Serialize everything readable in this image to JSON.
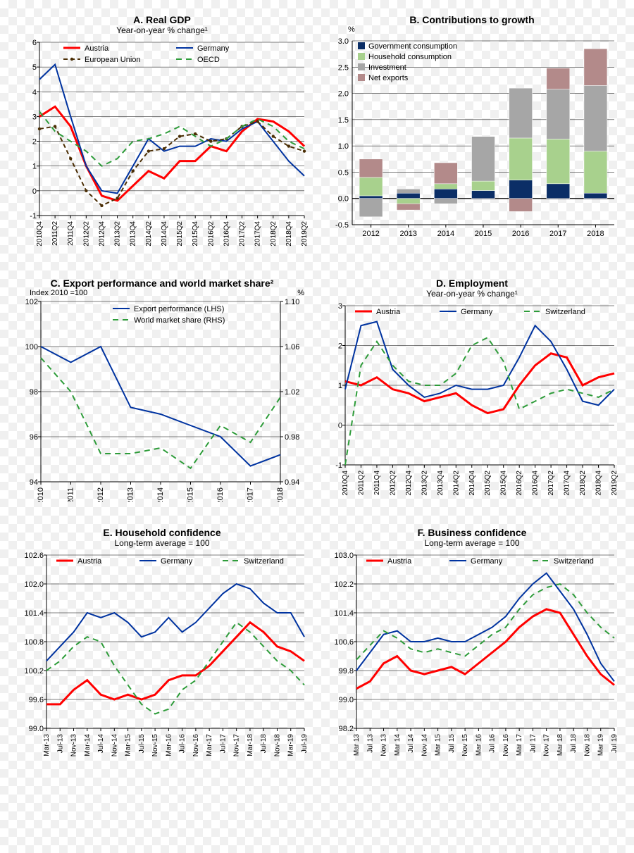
{
  "colors": {
    "austria": "#ff0000",
    "germany": "#0033a0",
    "eu": "#4b2e05",
    "oecd": "#2e9c3a",
    "switzerland": "#2e9c3a",
    "gov": "#0b2e66",
    "household": "#a8d18d",
    "investment": "#a6a6a6",
    "netexp": "#b38a8a",
    "grid": "#000000",
    "bg": "transparent"
  },
  "fonts": {
    "title_size": 14,
    "title_weight": "bold",
    "subtitle_size": 12,
    "tick_size": 11
  },
  "panelA": {
    "title": "A. Real GDP",
    "subtitle": "Year-on-year % change¹",
    "ylim": [
      -1,
      6
    ],
    "ytick_step": 1,
    "x_labels": [
      "2010Q4",
      "2011Q2",
      "2011Q4",
      "2012Q2",
      "2012Q4",
      "2013Q2",
      "2013Q4",
      "2014Q2",
      "2014Q4",
      "2015Q2",
      "2015Q4",
      "2016Q2",
      "2016Q4",
      "2017Q2",
      "2017Q4",
      "2018Q2",
      "2018Q4",
      "2019Q2"
    ],
    "series": [
      {
        "name": "Austria",
        "color": "#ff0000",
        "width": 3,
        "dash": null,
        "y": [
          3.0,
          3.4,
          2.6,
          1.0,
          -0.2,
          -0.4,
          0.2,
          0.8,
          0.5,
          1.2,
          1.2,
          1.8,
          1.6,
          2.4,
          2.9,
          2.8,
          2.4,
          1.8
        ]
      },
      {
        "name": "Germany",
        "color": "#0033a0",
        "width": 2,
        "dash": null,
        "y": [
          4.5,
          5.1,
          3.0,
          1.0,
          0.0,
          -0.1,
          1.0,
          2.1,
          1.6,
          1.8,
          1.8,
          2.1,
          2.0,
          2.5,
          2.8,
          2.0,
          1.2,
          0.6
        ]
      },
      {
        "name": "European Union",
        "color": "#4b2e05",
        "width": 2,
        "dash": "6,4",
        "markers": true,
        "y": [
          2.5,
          2.6,
          1.3,
          0.0,
          -0.6,
          -0.3,
          0.8,
          1.6,
          1.7,
          2.2,
          2.3,
          2.0,
          2.1,
          2.6,
          2.8,
          2.2,
          1.8,
          1.6
        ]
      },
      {
        "name": "OECD",
        "color": "#2e9c3a",
        "width": 2,
        "dash": "8,6",
        "y": [
          3.2,
          2.4,
          2.0,
          1.6,
          1.0,
          1.3,
          2.0,
          2.1,
          2.3,
          2.6,
          2.2,
          1.8,
          2.1,
          2.6,
          2.9,
          2.6,
          2.0,
          1.7
        ]
      }
    ],
    "legend": [
      "Austria",
      "Germany",
      "European Union",
      "OECD"
    ]
  },
  "panelB": {
    "title": "B. Contributions to growth",
    "unit_label": "%",
    "ylim": [
      -0.5,
      3.0
    ],
    "ytick_step": 0.5,
    "categories": [
      "2012",
      "2013",
      "2014",
      "2015",
      "2016",
      "2017",
      "2018"
    ],
    "legend": [
      "Government consumption",
      "Household consumption",
      "Investment",
      "Net exports"
    ],
    "stacks": [
      {
        "cat": "2012",
        "pos": [
          {
            "c": "#0b2e66",
            "v": 0.05
          },
          {
            "c": "#a8d18d",
            "v": 0.35
          },
          {
            "c": "#b38a8a",
            "v": 0.35
          }
        ],
        "neg": [
          {
            "c": "#a6a6a6",
            "v": 0.35
          }
        ]
      },
      {
        "cat": "2013",
        "pos": [
          {
            "c": "#0b2e66",
            "v": 0.1
          },
          {
            "c": "#a6a6a6",
            "v": 0.08
          }
        ],
        "neg": [
          {
            "c": "#a8d18d",
            "v": 0.1
          },
          {
            "c": "#b38a8a",
            "v": 0.12
          }
        ]
      },
      {
        "cat": "2014",
        "pos": [
          {
            "c": "#0b2e66",
            "v": 0.18
          },
          {
            "c": "#a8d18d",
            "v": 0.1
          },
          {
            "c": "#b38a8a",
            "v": 0.4
          }
        ],
        "neg": [
          {
            "c": "#a6a6a6",
            "v": 0.1
          }
        ]
      },
      {
        "cat": "2015",
        "pos": [
          {
            "c": "#0b2e66",
            "v": 0.15
          },
          {
            "c": "#a8d18d",
            "v": 0.18
          },
          {
            "c": "#a6a6a6",
            "v": 0.85
          }
        ],
        "neg": []
      },
      {
        "cat": "2016",
        "pos": [
          {
            "c": "#0b2e66",
            "v": 0.35
          },
          {
            "c": "#a8d18d",
            "v": 0.8
          },
          {
            "c": "#a6a6a6",
            "v": 0.95
          }
        ],
        "neg": [
          {
            "c": "#b38a8a",
            "v": 0.25
          }
        ]
      },
      {
        "cat": "2017",
        "pos": [
          {
            "c": "#0b2e66",
            "v": 0.28
          },
          {
            "c": "#a8d18d",
            "v": 0.85
          },
          {
            "c": "#a6a6a6",
            "v": 0.95
          },
          {
            "c": "#b38a8a",
            "v": 0.4
          }
        ],
        "neg": []
      },
      {
        "cat": "2018",
        "pos": [
          {
            "c": "#0b2e66",
            "v": 0.1
          },
          {
            "c": "#a8d18d",
            "v": 0.8
          },
          {
            "c": "#a6a6a6",
            "v": 1.25
          },
          {
            "c": "#b38a8a",
            "v": 0.7
          }
        ],
        "neg": []
      }
    ]
  },
  "panelC": {
    "title": "C. Export performance and world market share²",
    "left_unit": "Index 2010 =100",
    "right_unit": "%",
    "ylim_l": [
      94,
      102
    ],
    "ytick_l": 2,
    "ylim_r": [
      0.94,
      1.1
    ],
    "ytick_r": 0.04,
    "x_labels": [
      "2010",
      "2011",
      "2012",
      "2013",
      "2014",
      "2015",
      "2016",
      "2017",
      "2018"
    ],
    "series": [
      {
        "name": "Export performance (LHS)",
        "color": "#0033a0",
        "width": 2,
        "dash": null,
        "axis": "l",
        "y": [
          100.0,
          99.3,
          100.0,
          97.3,
          97.0,
          96.5,
          96.0,
          94.7,
          95.2
        ]
      },
      {
        "name": "World market share (RHS)",
        "color": "#2e9c3a",
        "width": 2,
        "dash": "8,6",
        "axis": "r",
        "y": [
          1.05,
          1.02,
          0.965,
          0.965,
          0.97,
          0.952,
          0.99,
          0.975,
          1.015
        ]
      }
    ],
    "legend": [
      "Export performance (LHS)",
      "World market share (RHS)"
    ]
  },
  "panelD": {
    "title": "D. Employment",
    "subtitle": "Year-on-year % change¹",
    "ylim": [
      -1,
      3
    ],
    "ytick_step": 1,
    "x_labels": [
      "2010Q4",
      "2011Q2",
      "2011Q4",
      "2012Q2",
      "2012Q4",
      "2013Q2",
      "2013Q4",
      "2014Q2",
      "2014Q4",
      "2015Q2",
      "2015Q4",
      "2016Q2",
      "2016Q4",
      "2017Q2",
      "2017Q4",
      "2018Q2",
      "2018Q4",
      "2019Q2"
    ],
    "series": [
      {
        "name": "Austria",
        "color": "#ff0000",
        "width": 3,
        "dash": null,
        "y": [
          1.1,
          1.0,
          1.2,
          0.9,
          0.8,
          0.6,
          0.7,
          0.8,
          0.5,
          0.3,
          0.4,
          1.0,
          1.5,
          1.8,
          1.7,
          1.0,
          1.2,
          1.3
        ]
      },
      {
        "name": "Germany",
        "color": "#0033a0",
        "width": 2,
        "dash": null,
        "y": [
          0.9,
          2.5,
          2.6,
          1.4,
          1.0,
          0.7,
          0.8,
          1.0,
          0.9,
          0.9,
          1.0,
          1.7,
          2.5,
          2.1,
          1.4,
          0.6,
          0.5,
          0.9
        ]
      },
      {
        "name": "Switzerland",
        "color": "#2e9c3a",
        "width": 2,
        "dash": "8,6",
        "y": [
          -1.0,
          1.5,
          2.1,
          1.5,
          1.1,
          1.0,
          1.0,
          1.3,
          2.0,
          2.2,
          1.6,
          0.4,
          0.6,
          0.8,
          0.9,
          0.8,
          0.7,
          0.9
        ]
      }
    ],
    "legend": [
      "Austria",
      "Germany",
      "Switzerland"
    ]
  },
  "panelE": {
    "title": "E. Household confidence",
    "subtitle": "Long-term average = 100",
    "ylim": [
      99.0,
      102.6
    ],
    "yticks": [
      99.0,
      99.6,
      100.2,
      100.8,
      101.4,
      102.0,
      102.6
    ],
    "x_labels": [
      "Mar-13",
      "Jul-13",
      "Nov-13",
      "Mar-14",
      "Jul-14",
      "Nov-14",
      "Mar-15",
      "Jul-15",
      "Nov-15",
      "Mar-16",
      "Jul-16",
      "Nov-16",
      "Mar-17",
      "Jul-17",
      "Nov-17",
      "Mar-18",
      "Jul-18",
      "Nov-18",
      "Mar-19",
      "Jul-19"
    ],
    "series": [
      {
        "name": "Austria",
        "color": "#ff0000",
        "width": 3,
        "dash": null,
        "y": [
          99.5,
          99.5,
          99.8,
          100.0,
          99.7,
          99.6,
          99.7,
          99.6,
          99.7,
          100.0,
          100.1,
          100.1,
          100.3,
          100.6,
          100.9,
          101.2,
          101.0,
          100.7,
          100.6,
          100.4
        ]
      },
      {
        "name": "Germany",
        "color": "#0033a0",
        "width": 2,
        "dash": null,
        "y": [
          100.4,
          100.7,
          101.0,
          101.4,
          101.3,
          101.4,
          101.2,
          100.9,
          101.0,
          101.3,
          101.0,
          101.2,
          101.5,
          101.8,
          102.0,
          101.9,
          101.6,
          101.4,
          101.4,
          100.9
        ]
      },
      {
        "name": "Switzerland",
        "color": "#2e9c3a",
        "width": 2,
        "dash": "8,6",
        "y": [
          100.2,
          100.4,
          100.7,
          100.9,
          100.8,
          100.3,
          99.9,
          99.5,
          99.3,
          99.4,
          99.8,
          100.0,
          100.4,
          100.8,
          101.2,
          101.0,
          100.7,
          100.4,
          100.2,
          99.9
        ]
      }
    ],
    "legend": [
      "Austria",
      "Germany",
      "Switzerland"
    ]
  },
  "panelF": {
    "title": "F. Business confidence",
    "subtitle": "Long-term average = 100",
    "ylim": [
      98.2,
      103.0
    ],
    "yticks": [
      98.2,
      99.0,
      99.8,
      100.6,
      101.4,
      102.2,
      103.0
    ],
    "x_labels": [
      "Mar 13",
      "Jul 13",
      "Nov 13",
      "Mar 14",
      "Jul 14",
      "Nov 14",
      "Mar 15",
      "Jul 15",
      "Nov 15",
      "Mar 16",
      "Jul 16",
      "Nov 16",
      "Mar 17",
      "Jul 17",
      "Nov 17",
      "Mar 18",
      "Jul 18",
      "Nov 18",
      "Mar 19",
      "Jul 19"
    ],
    "series": [
      {
        "name": "Austria",
        "color": "#ff0000",
        "width": 3,
        "dash": null,
        "y": [
          99.3,
          99.5,
          100.0,
          100.2,
          99.8,
          99.7,
          99.8,
          99.9,
          99.7,
          100.0,
          100.3,
          100.6,
          101.0,
          101.3,
          101.5,
          101.4,
          100.8,
          100.2,
          99.7,
          99.4
        ]
      },
      {
        "name": "Germany",
        "color": "#0033a0",
        "width": 2,
        "dash": null,
        "y": [
          99.8,
          100.3,
          100.8,
          100.9,
          100.6,
          100.6,
          100.7,
          100.6,
          100.6,
          100.8,
          101.0,
          101.3,
          101.8,
          102.2,
          102.5,
          102.0,
          101.5,
          100.8,
          100.0,
          99.5
        ]
      },
      {
        "name": "Switzerland",
        "color": "#2e9c3a",
        "width": 2,
        "dash": "8,6",
        "y": [
          100.1,
          100.5,
          100.9,
          100.7,
          100.4,
          100.3,
          100.4,
          100.3,
          100.2,
          100.5,
          100.8,
          101.0,
          101.5,
          101.9,
          102.1,
          102.2,
          101.9,
          101.4,
          101.0,
          100.7
        ]
      }
    ],
    "legend": [
      "Austria",
      "Germany",
      "Switzerland"
    ]
  }
}
